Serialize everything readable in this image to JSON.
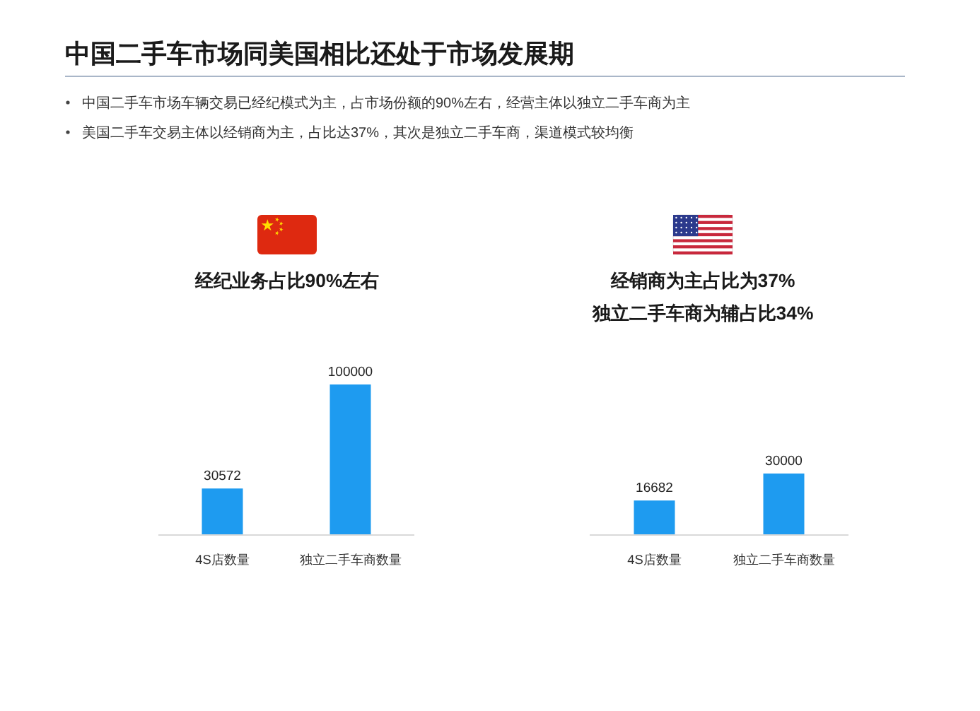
{
  "chart_data": [
    {
      "type": "other",
      "title": "中国二手车市场同美国相比还处于市场发展期",
      "annotations": [
        "中国二手车市场车辆交易已经纪模式为主，占市场份额的90%左右，经营主体以独立二手车商为主",
        "美国二手车交易主体以经销商为主，占比达37%，其次是独立二手车商，渠道模式较均衡"
      ]
    },
    {
      "type": "bar",
      "title": "经纪业务占比90%左右",
      "categories": [
        "4S店数量",
        "独立二手车商数量"
      ],
      "values": [
        30572,
        100000
      ],
      "color": "#1e9bf0",
      "data_labels": true
    },
    {
      "type": "bar",
      "title": "经销商为主占比为37%",
      "subtitle": "独立二手车商为辅占比34%",
      "categories": [
        "4S店数量",
        "独立二手车商数量"
      ],
      "values": [
        16682,
        30000
      ],
      "color": "#1e9bf0",
      "data_labels": true
    }
  ]
}
